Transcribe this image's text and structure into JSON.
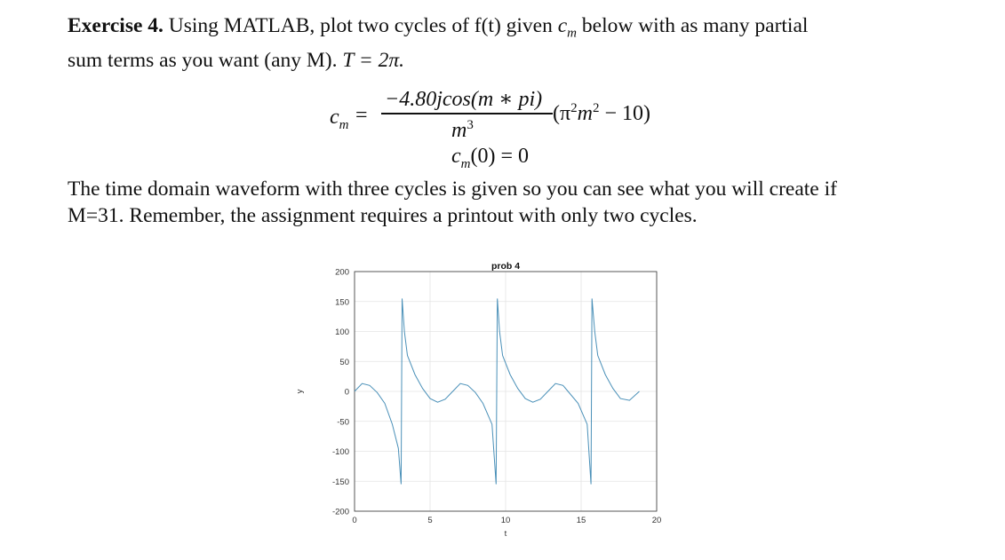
{
  "exercise": {
    "label": "Exercise 4.",
    "text_a": "Using MATLAB, plot two cycles of f(t) given ",
    "cm_symbol": "c",
    "cm_sub": "m",
    "text_b": " below with as many partial",
    "line2_a": "sum terms as you want (any M). ",
    "T_eq": "T = 2π."
  },
  "equation": {
    "lhs": "c",
    "lhs_sub": "m",
    "equals": "=",
    "numerator": "−4.80jcos(m ∗ pi)",
    "denominator": "m",
    "denominator_exp": "3",
    "factor": "(π",
    "factor_exp1": "2",
    "factor_mid": "m",
    "factor_exp2": "2",
    "factor_end": " − 10)",
    "zero_case": "c",
    "zero_sub": "m",
    "zero_rest": "(0) = 0"
  },
  "paragraph2": {
    "line1": "The time domain waveform with three cycles is given so you can see what you will create if",
    "line2": "M=31. Remember, the assignment requires a printout with only two cycles."
  },
  "chart_data": {
    "type": "line",
    "title": "prob 4",
    "xlabel": "t",
    "ylabel": "y",
    "xlim": [
      0,
      20
    ],
    "ylim": [
      -200,
      200
    ],
    "xticks": [
      0,
      5,
      10,
      15,
      20
    ],
    "yticks": [
      -200,
      -150,
      -100,
      -50,
      0,
      50,
      100,
      150,
      200
    ],
    "grid": true,
    "series": [
      {
        "color": "#4a90b8",
        "x": [
          0,
          0.5,
          1,
          1.5,
          2,
          2.5,
          2.9,
          3.08,
          3.15,
          3.3,
          3.5,
          4,
          4.5,
          5,
          5.5,
          6,
          6.5,
          7,
          7.5,
          8,
          8.5,
          9.1,
          9.37,
          9.45,
          9.6,
          9.8,
          10.3,
          10.8,
          11.3,
          11.8,
          12.3,
          12.8,
          13.3,
          13.8,
          14.8,
          15.4,
          15.65,
          15.72,
          15.9,
          16.1,
          16.6,
          17.1,
          17.6,
          18.2,
          18.85
        ],
        "y": [
          0,
          13,
          10,
          -2,
          -20,
          -55,
          -95,
          -155,
          155,
          100,
          60,
          28,
          5,
          -12,
          -18,
          -13,
          0,
          13,
          10,
          -2,
          -20,
          -55,
          -155,
          155,
          100,
          60,
          28,
          5,
          -12,
          -18,
          -13,
          0,
          13,
          10,
          -20,
          -55,
          -155,
          155,
          100,
          60,
          28,
          5,
          -12,
          -15,
          0
        ]
      }
    ]
  }
}
